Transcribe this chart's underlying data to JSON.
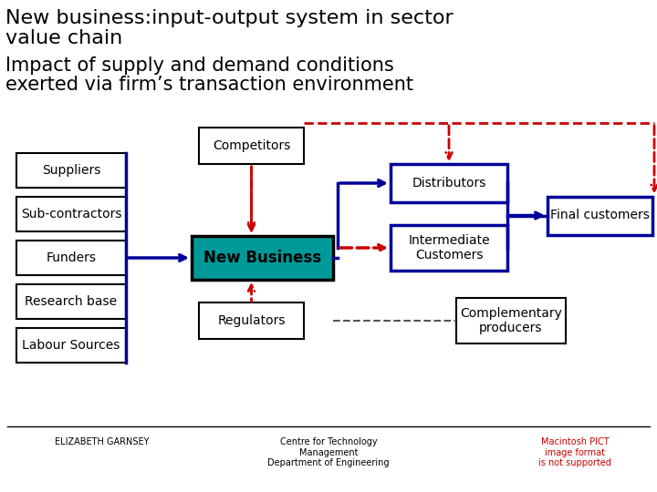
{
  "title_line1": "New business:input-output system in sector",
  "title_line2": "value chain",
  "subtitle_line1": "Impact of supply and demand conditions",
  "subtitle_line2": "exerted via firm’s transaction environment",
  "bg_color": "#ffffff",
  "title_color": "#000000",
  "subtitle_color": "#000000",
  "box_edge_color": "#000000",
  "new_business_fill": "#009999",
  "new_business_text": "New Business",
  "left_boxes": [
    "Suppliers",
    "Sub-contractors",
    "Funders",
    "Research base",
    "Labour Sources"
  ],
  "top_box": "Competitors",
  "bottom_box": "Regulators",
  "right_box_dist": "Distributors",
  "right_box_ic": "Intermediate\nCustomers",
  "right_box_fc": "Final customers",
  "bottom_right_box": "Complementary\nproducers",
  "footer_left": "ELIZABETH GARNSEY",
  "footer_center": "Centre for Technology\nManagement\nDepartment of Engineering",
  "footer_right": "Macintosh PICT\nimage format\nis not supported",
  "solid_blue": "#000099",
  "dashed_red": "#cc0000",
  "dashed_black": "#555555"
}
